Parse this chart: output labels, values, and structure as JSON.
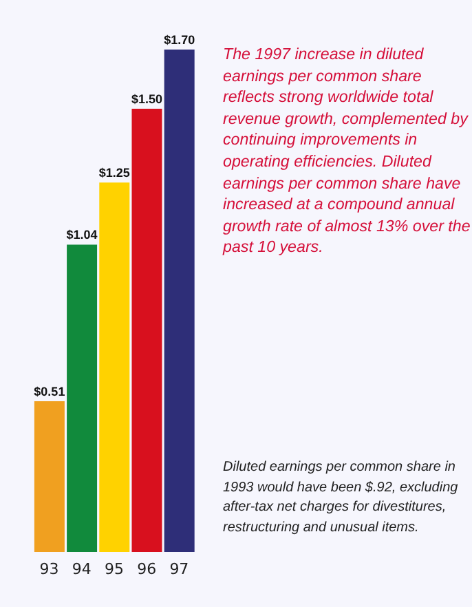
{
  "chart_data": {
    "type": "bar",
    "categories": [
      "93",
      "94",
      "95",
      "96",
      "97"
    ],
    "values": [
      0.51,
      1.04,
      1.25,
      1.5,
      1.7
    ],
    "colors": [
      "#f0a020",
      "#118a3c",
      "#ffd200",
      "#d8101e",
      "#2e2e78"
    ],
    "value_labels": [
      "$0.51",
      "$1.04",
      "$1.25",
      "$1.50",
      "$1.70"
    ],
    "annotations": [
      "The 1997 increase in diluted earnings per common share reflects strong worldwide total revenue growth, complemented by continuing improvements in operating efficiencies. Diluted earnings per common share have increased at a compound annual growth rate of almost 13% over the past 10 years.",
      "Diluted earnings per common share in 1993 would have been $.92, excluding after-tax net charges for divestitures, restructuring and unusual items."
    ]
  }
}
